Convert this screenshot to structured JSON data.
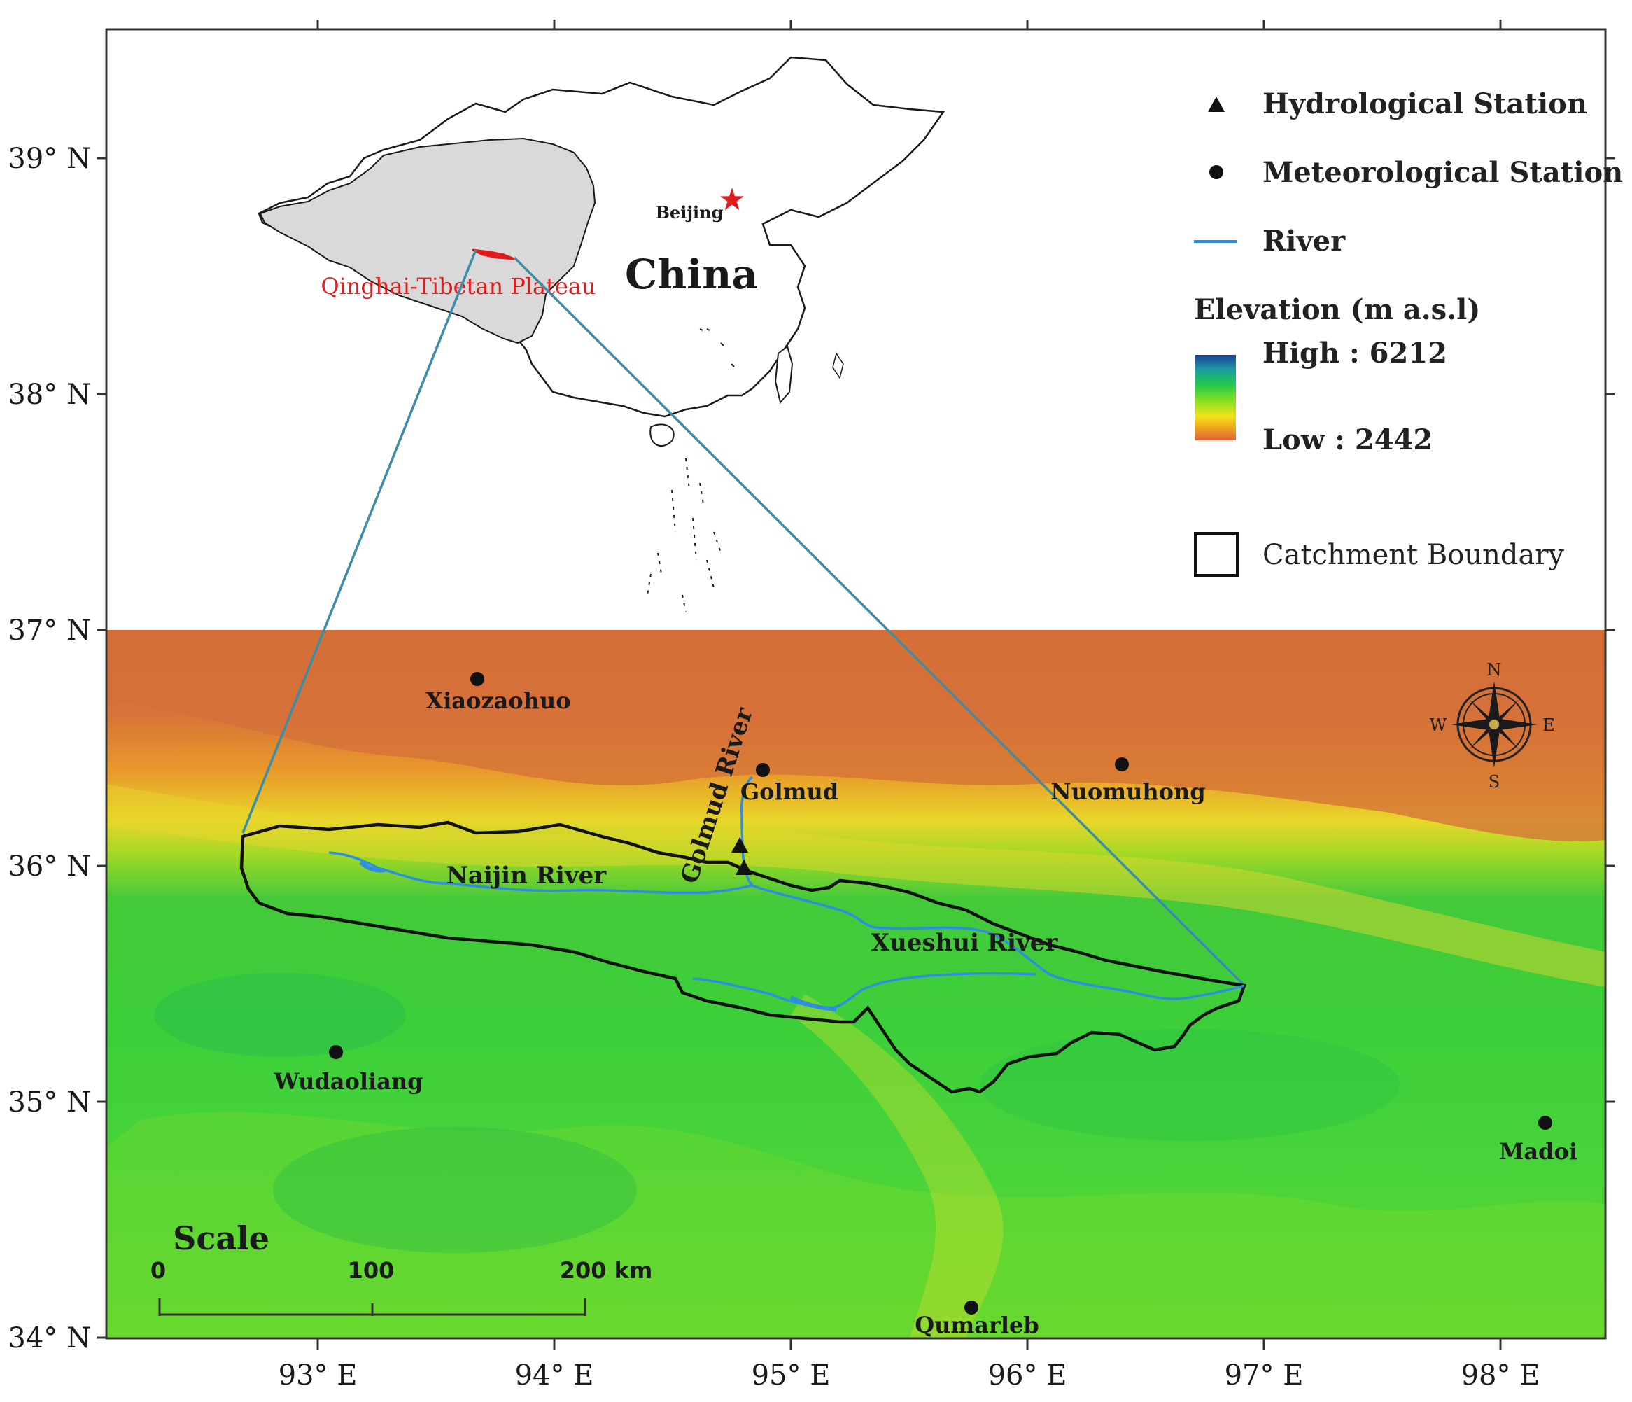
{
  "map": {
    "lon_ticks": [
      "93° E",
      "94° E",
      "95° E",
      "96° E",
      "97° E",
      "98° E"
    ],
    "lat_ticks": [
      "39° N",
      "38° N",
      "37° N",
      "36° N",
      "35° N",
      "34° N"
    ]
  },
  "inset": {
    "country_label": "China",
    "capital_label": "Beijing",
    "region_label": "Qinghai-Tibetan Plateau",
    "region_color": "#e11c1c",
    "plateau_fill": "#d9d9d9"
  },
  "legend": {
    "hydro": "Hydrological Station",
    "meteo": "Meteorological Station",
    "river": "River",
    "elevation_title": "Elevation (m a.s.l)",
    "high": "High : 6212",
    "low": "Low : 2442",
    "catchment": "Catchment Boundary",
    "river_color": "#2e8ee0"
  },
  "stations": {
    "xiaozaohuo": "Xiaozaohuo",
    "golmud": "Golmud",
    "nuomuhong": "Nuomuhong",
    "wudaoliang": "Wudaoliang",
    "madoi": "Madoi",
    "qumarleb": "Qumarleb"
  },
  "rivers": {
    "golmud": "Golmud River",
    "naijin": "Naijin River",
    "xueshui": "Xueshui River"
  },
  "scale": {
    "title": "Scale",
    "t0": "0",
    "t1": "100",
    "t2": "200 km"
  },
  "compass": {
    "n": "N",
    "s": "S",
    "e": "E",
    "w": "W"
  }
}
